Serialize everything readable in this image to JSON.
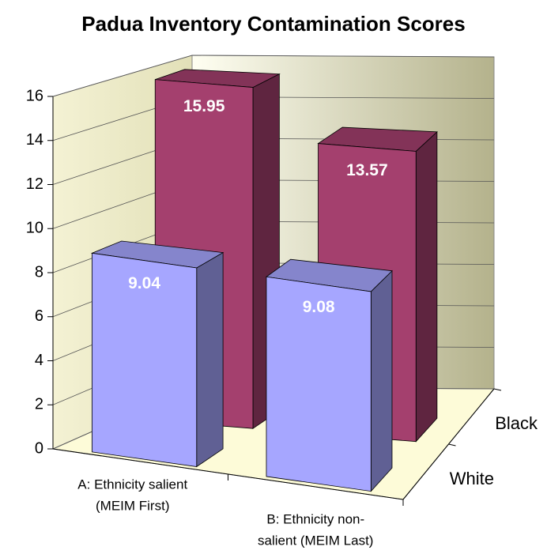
{
  "chart_data": {
    "type": "bar3d",
    "title": "Padua Inventory Contamination Scores",
    "categories": [
      [
        "A: Ethnicity salient",
        "(MEIM First)"
      ],
      [
        "B: Ethnicity non-",
        "salient (MEIM Last)"
      ]
    ],
    "series": [
      {
        "name": "White",
        "color": "#a6a6ff",
        "values": [
          9.04,
          9.08
        ]
      },
      {
        "name": "Black",
        "color": "#a4406e",
        "values": [
          15.95,
          13.57
        ]
      }
    ],
    "ylim": [
      0,
      16
    ],
    "yticks": [
      0,
      2,
      4,
      6,
      8,
      10,
      12,
      14,
      16
    ],
    "grid": true
  }
}
